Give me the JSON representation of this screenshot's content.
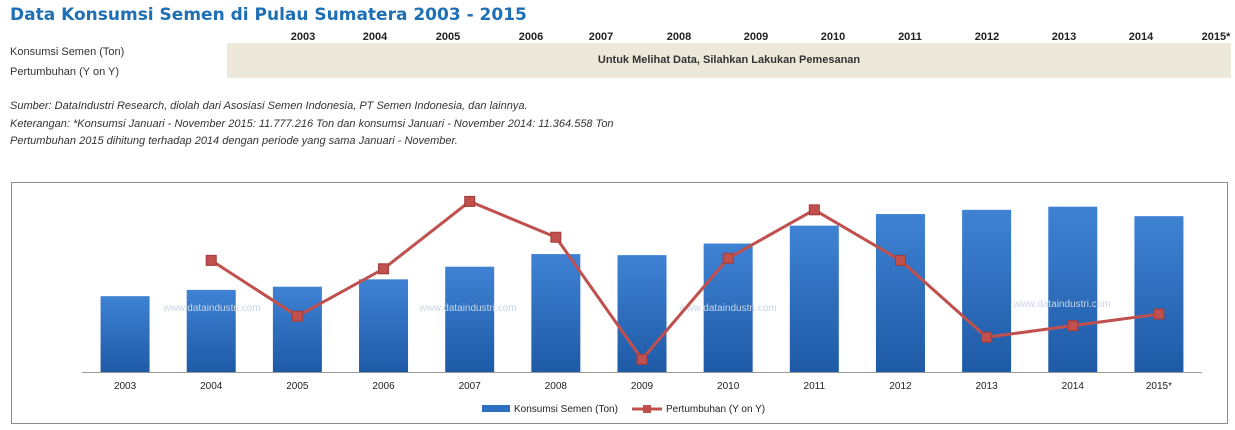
{
  "page": {
    "title": "Data Konsumsi Semen di Pulau Sumatera 2003 - 2015",
    "years": [
      "2003",
      "2004",
      "2005",
      "2006",
      "2007",
      "2008",
      "2009",
      "2010",
      "2011",
      "2012",
      "2013",
      "2014",
      "2015*"
    ],
    "row_labels": [
      "Konsumsi Semen (Ton)",
      "Pertumbuhan (Y on Y)"
    ],
    "locked_message": "Untuk Melihat Data, Silahkan Lakukan Pemesanan",
    "notes": [
      "Sumber: DataIndustri Research, diolah dari Asosiasi Semen Indonesia, PT Semen Indonesia, dan lainnya.",
      "Keterangan: *Konsumsi Januari - November 2015: 11.777.216 Ton dan konsumsi Januari - November 2014: 11.364.558 Ton",
      "Pertumbuhan 2015 dihitung terhadap 2014 dengan periode yang sama Januari - November."
    ],
    "watermark": "www.dataindustri.com"
  },
  "chart_data": {
    "type": "bar",
    "categories": [
      "2003",
      "2004",
      "2005",
      "2006",
      "2007",
      "2008",
      "2009",
      "2010",
      "2011",
      "2012",
      "2013",
      "2014",
      "2015*"
    ],
    "series": [
      {
        "name": "Konsumsi Semen (Ton)",
        "kind": "bar",
        "color": "#2f6fbf",
        "values": [
          72,
          78,
          81,
          88,
          100,
          112,
          111,
          122,
          139,
          150,
          154,
          157,
          148
        ]
      },
      {
        "name": "Pertumbuhan (Y on Y)",
        "kind": "line",
        "color": "#c0504d",
        "values": [
          null,
          106,
          53,
          98,
          162,
          128,
          12,
          108,
          154,
          106,
          33,
          44,
          55
        ]
      }
    ],
    "ylim": [
      0,
      170
    ],
    "y2lim": [
      0,
      170
    ],
    "grid": false,
    "legend": "bottom-center"
  }
}
